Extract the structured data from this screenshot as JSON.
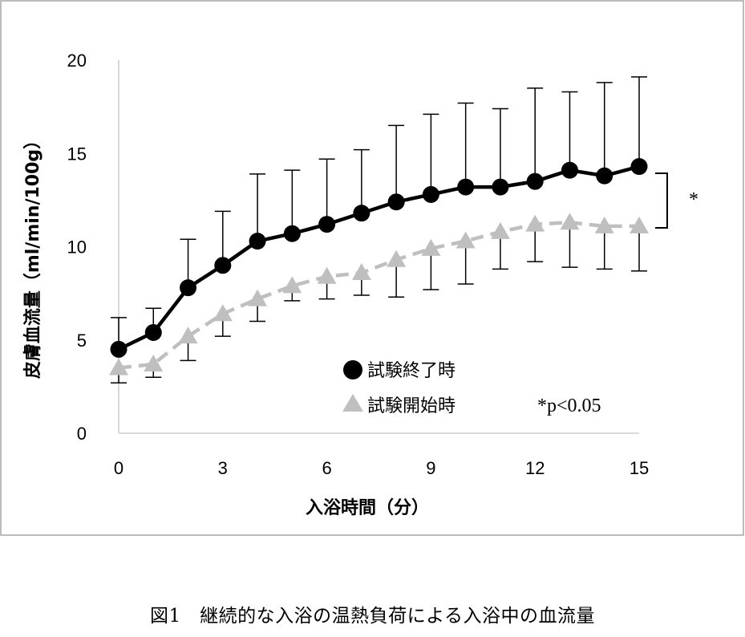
{
  "chart_data": {
    "type": "line",
    "title": "",
    "xlabel": "入浴時間（分）",
    "ylabel": "皮膚血流量（ml/min/100g）",
    "xlim": [
      0,
      15
    ],
    "ylim": [
      0,
      20
    ],
    "x_ticks": [
      "0",
      "3",
      "6",
      "9",
      "12",
      "15"
    ],
    "y_ticks": [
      "0",
      "5",
      "10",
      "15",
      "20"
    ],
    "x": [
      0,
      1,
      2,
      3,
      4,
      5,
      6,
      7,
      8,
      9,
      10,
      11,
      12,
      13,
      14,
      15
    ],
    "series": [
      {
        "name": "試験終了時",
        "marker": "circle",
        "line": "solid",
        "color": "#000000",
        "values": [
          4.5,
          5.4,
          7.8,
          9.0,
          10.3,
          10.7,
          11.2,
          11.8,
          12.4,
          12.8,
          13.2,
          13.2,
          13.5,
          14.1,
          13.8,
          14.3
        ],
        "error_upper": [
          1.7,
          1.3,
          2.6,
          2.9,
          3.6,
          3.4,
          3.5,
          3.4,
          4.1,
          4.3,
          4.5,
          4.2,
          5.0,
          4.2,
          5.0,
          4.8
        ],
        "error_lower": [
          0,
          0,
          0,
          0,
          0,
          0,
          0,
          0,
          0,
          0,
          0,
          0,
          0,
          0,
          0,
          0
        ]
      },
      {
        "name": "試験開始時",
        "marker": "triangle",
        "line": "dashed",
        "color": "#bfbfbf",
        "values": [
          3.5,
          3.7,
          5.2,
          6.4,
          7.2,
          7.9,
          8.4,
          8.6,
          9.3,
          9.9,
          10.3,
          10.8,
          11.2,
          11.3,
          11.1,
          11.1
        ],
        "error_upper": [
          0,
          0,
          0,
          0,
          0,
          0,
          0,
          0,
          0,
          0,
          0,
          0,
          0,
          0,
          0,
          0
        ],
        "error_lower": [
          0.8,
          0.7,
          1.3,
          1.2,
          1.2,
          0.8,
          1.2,
          1.2,
          2.0,
          2.2,
          2.3,
          2.0,
          2.0,
          2.4,
          2.3,
          2.4
        ]
      }
    ],
    "grid": false,
    "legend": "bottom-center",
    "significance_marker": "*",
    "note": "*p<0.05"
  },
  "caption": "図1　継続的な入浴の温熱負荷による入浴中の血流量"
}
